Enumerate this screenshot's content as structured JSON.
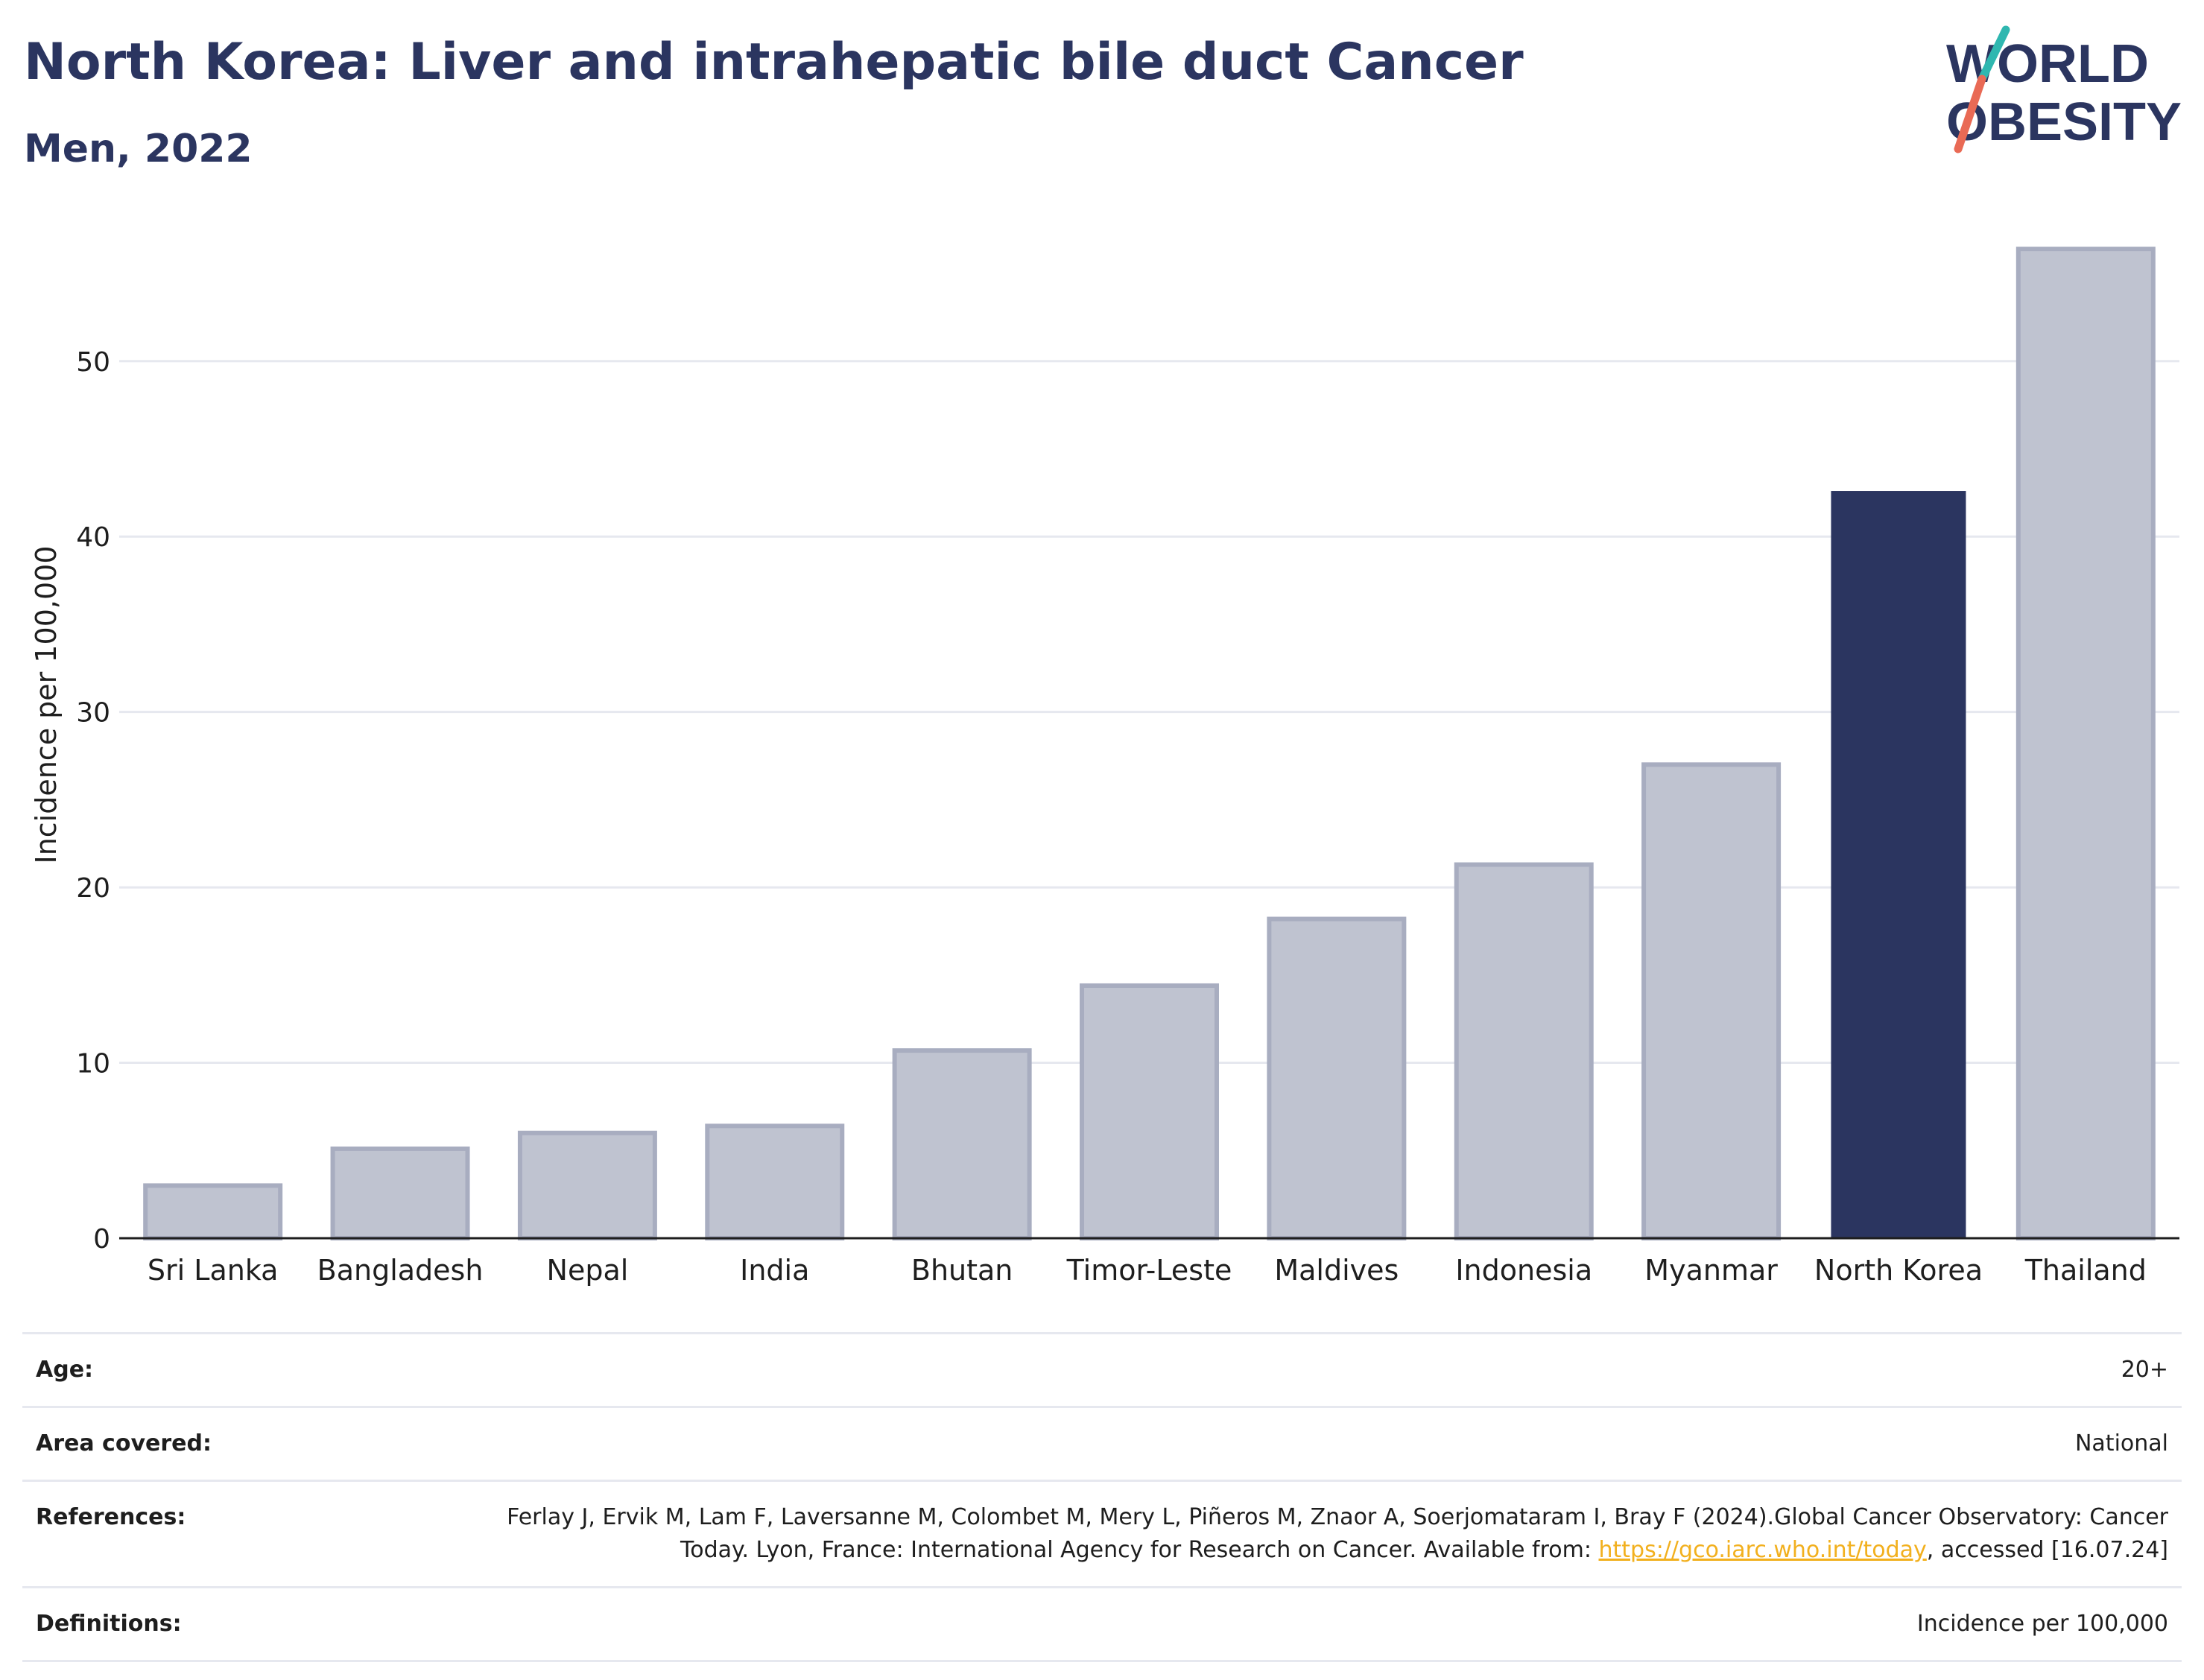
{
  "title": "North Korea: Liver and intrahepatic bile duct Cancer",
  "subtitle": "Men, 2022",
  "logo": {
    "line1": "WORLD",
    "line2": "OBESITY",
    "accent_colors": [
      "#2fb7b0",
      "#e96a55"
    ]
  },
  "colors": {
    "highlight": "#2b3560",
    "bar": "#bfc3d0",
    "bar_edge": "#a8adc0",
    "grid": "#e6e8ef",
    "text": "#1e1e1e"
  },
  "chart_data": {
    "type": "bar",
    "categories": [
      "Sri Lanka",
      "Bangladesh",
      "Nepal",
      "India",
      "Bhutan",
      "Timor-Leste",
      "Maldives",
      "Indonesia",
      "Myanmar",
      "North Korea",
      "Thailand"
    ],
    "values": [
      3.0,
      5.1,
      6.0,
      6.4,
      10.7,
      14.4,
      18.2,
      21.3,
      27.0,
      42.6,
      56.4
    ],
    "highlight": "North Korea",
    "ylabel": "Incidence per 100,000",
    "xlabel": "",
    "ylim": [
      0,
      57
    ],
    "yticks": [
      0,
      10,
      20,
      30,
      40,
      50
    ],
    "grid": true
  },
  "meta": {
    "age_label": "Age:",
    "age_value": "20+",
    "area_label": "Area covered:",
    "area_value": "National",
    "references_label": "References:",
    "references_text_1": "Ferlay J, Ervik M, Lam F, Laversanne M, Colombet M, Mery L, Piñeros M, Znaor A, Soerjomataram I, Bray F (2024).Global Cancer Observatory: Cancer Today. Lyon, France: International Agency for Research on Cancer. Available from: ",
    "references_link": "https://gco.iarc.who.int/today",
    "references_text_2": ", accessed [16.07.24]",
    "definitions_label": "Definitions:",
    "definitions_value": "Incidence per 100,000"
  }
}
